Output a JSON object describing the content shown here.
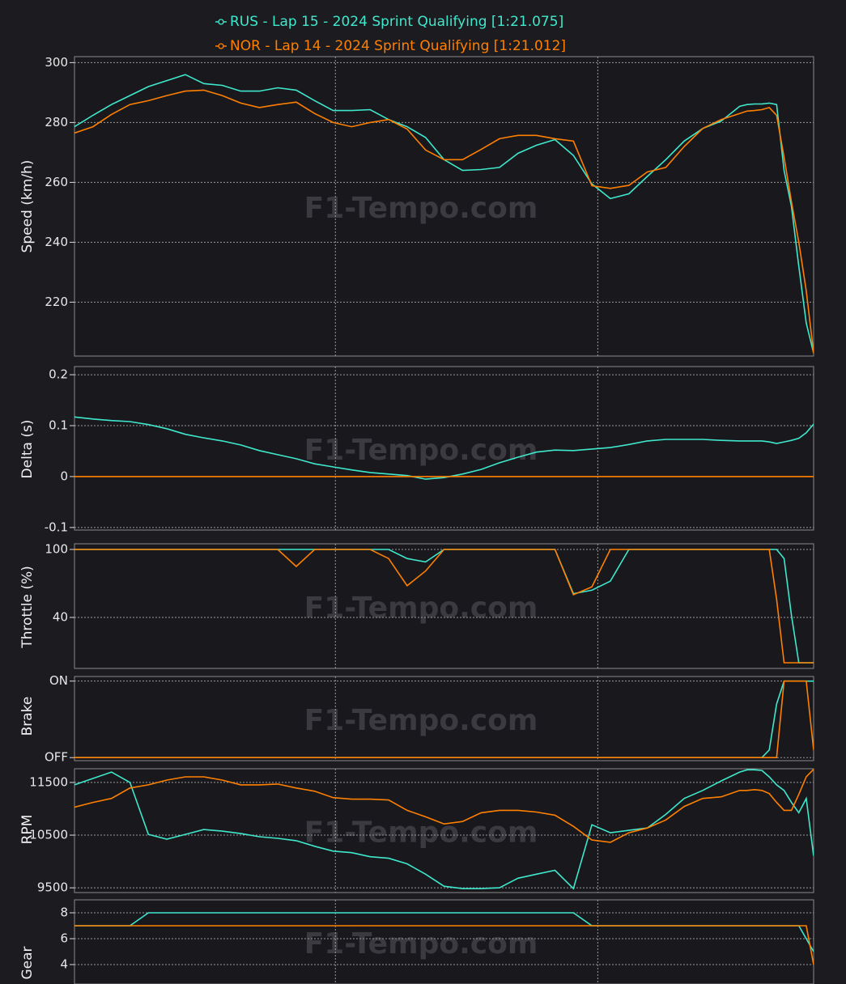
{
  "watermark": "F1-Tempo.com",
  "chart_data": [
    {
      "type": "line",
      "y_label": "Speed (km/h)",
      "x": [
        0,
        2.5,
        5,
        7.5,
        10,
        12.5,
        15,
        17.5,
        20,
        22.5,
        25,
        27.5,
        30,
        32.5,
        35,
        37.5,
        40,
        42.5,
        45,
        47.5,
        50,
        52.5,
        55,
        57.5,
        60,
        62.5,
        65,
        67.5,
        70,
        72.5,
        75,
        77.5,
        80,
        82.5,
        85,
        87.5,
        90,
        91,
        92,
        93,
        94,
        95,
        96,
        97,
        98,
        99,
        100
      ],
      "xlim": [
        0,
        100
      ],
      "xticks": [
        35.3,
        70.8
      ],
      "ylim": [
        202,
        302
      ],
      "yticks": [
        220,
        240,
        260,
        280,
        300
      ],
      "grid": true,
      "series": [
        {
          "name": "RUS - Lap 15 - 2024 Sprint Qualifying [1:21.075]",
          "color": "#3fe8cc",
          "values": [
            278.6,
            282.4,
            286,
            289,
            292,
            294,
            296,
            293,
            292.4,
            290.5,
            290.5,
            291.6,
            290.8,
            287.3,
            284,
            284,
            284.3,
            281,
            278.6,
            275,
            267.6,
            264,
            264.3,
            265,
            269.7,
            272.4,
            274.3,
            269,
            259.5,
            254.6,
            256.2,
            262,
            267.6,
            273.8,
            278,
            280.5,
            285.4,
            286,
            286.2,
            286.2,
            286.5,
            286,
            264,
            252,
            232,
            213,
            203
          ]
        },
        {
          "name": "NOR - Lap 14 - 2024 Sprint Qualifying [1:21.012]",
          "color": "#ff8000",
          "values": [
            276.5,
            278.6,
            282.7,
            286,
            287.3,
            289,
            290.5,
            290.8,
            289,
            286.5,
            285,
            286,
            286.8,
            283,
            280,
            278.6,
            280,
            281,
            277.8,
            270.8,
            267.6,
            267.6,
            271,
            274.6,
            275.7,
            275.7,
            274.6,
            273.8,
            258.9,
            258,
            259,
            263.5,
            265,
            272,
            278,
            281,
            283,
            283.8,
            284,
            284.3,
            285,
            282.4,
            268.4,
            253.5,
            240,
            223.8,
            203
          ]
        }
      ]
    },
    {
      "type": "line",
      "y_label": "Delta (s)",
      "x": [
        0,
        2.5,
        5,
        7.5,
        10,
        12.5,
        15,
        17.5,
        20,
        22.5,
        25,
        27.5,
        30,
        32.5,
        35,
        37.5,
        40,
        42.5,
        45,
        47.5,
        50,
        52.5,
        55,
        57.5,
        60,
        62.5,
        65,
        67.5,
        70,
        72.5,
        75,
        77.5,
        80,
        82.5,
        85,
        87.5,
        90,
        91,
        92,
        93,
        94,
        95,
        96,
        97,
        98,
        99,
        100
      ],
      "xlim": [
        0,
        100
      ],
      "xticks": [
        35.3,
        70.8
      ],
      "ylim": [
        -0.105,
        0.216
      ],
      "yticks": [
        -0.1,
        0,
        0.1,
        0.2
      ],
      "grid": true,
      "series": [
        {
          "color": "#3fe8cc",
          "values": [
            0.117,
            0.113,
            0.11,
            0.108,
            0.102,
            0.094,
            0.083,
            0.076,
            0.07,
            0.062,
            0.051,
            0.043,
            0.035,
            0.025,
            0.019,
            0.013,
            0.008,
            0.005,
            0.002,
            -0.005,
            -0.002,
            0.005,
            0.014,
            0.027,
            0.038,
            0.048,
            0.052,
            0.051,
            0.054,
            0.057,
            0.063,
            0.07,
            0.073,
            0.073,
            0.073,
            0.071,
            0.07,
            0.07,
            0.07,
            0.07,
            0.068,
            0.065,
            0.068,
            0.071,
            0.075,
            0.086,
            0.103
          ]
        },
        {
          "color": "#ff8000",
          "values": [
            0,
            0,
            0,
            0,
            0,
            0,
            0,
            0,
            0,
            0,
            0,
            0,
            0,
            0,
            0,
            0,
            0,
            0,
            0,
            0,
            0,
            0,
            0,
            0,
            0,
            0,
            0,
            0,
            0,
            0,
            0,
            0,
            0,
            0,
            0,
            0,
            0,
            0,
            0,
            0,
            0,
            0,
            0,
            0,
            0,
            0,
            0
          ]
        }
      ]
    },
    {
      "type": "line",
      "y_label": "Throttle (%)",
      "x": [
        0,
        2.5,
        5,
        7.5,
        10,
        12.5,
        15,
        17.5,
        20,
        22.5,
        25,
        27.5,
        30,
        32.5,
        35,
        37.5,
        40,
        42.5,
        45,
        47.5,
        50,
        52.5,
        55,
        57.5,
        60,
        62.5,
        65,
        67.5,
        70,
        72.5,
        75,
        77.5,
        80,
        82.5,
        85,
        87.5,
        90,
        91,
        92,
        93,
        94,
        95,
        96,
        97,
        98,
        99,
        100
      ],
      "xlim": [
        0,
        100
      ],
      "xticks": [
        35.3,
        70.8
      ],
      "ylim": [
        -5,
        105
      ],
      "yticks": [
        40,
        100
      ],
      "grid": true,
      "series": [
        {
          "color": "#3fe8cc",
          "values": [
            100,
            100,
            100,
            100,
            100,
            100,
            100,
            100,
            100,
            100,
            100,
            100,
            100,
            100,
            100,
            100,
            100,
            100,
            92,
            89,
            100,
            100,
            100,
            100,
            100,
            100,
            100,
            61,
            64,
            72,
            100,
            100,
            100,
            100,
            100,
            100,
            100,
            100,
            100,
            100,
            100,
            100,
            92,
            42,
            0,
            0,
            0
          ]
        },
        {
          "color": "#ff8000",
          "values": [
            100,
            100,
            100,
            100,
            100,
            100,
            100,
            100,
            100,
            100,
            100,
            100,
            85,
            100,
            100,
            100,
            100,
            92,
            68,
            81,
            100,
            100,
            100,
            100,
            100,
            100,
            100,
            60,
            67,
            100,
            100,
            100,
            100,
            100,
            100,
            100,
            100,
            100,
            100,
            100,
            100,
            56,
            0,
            0,
            0,
            0,
            0
          ]
        }
      ]
    },
    {
      "type": "line",
      "y_label": "Brake",
      "x": [
        0,
        2.5,
        5,
        7.5,
        10,
        12.5,
        15,
        17.5,
        20,
        22.5,
        25,
        27.5,
        30,
        32.5,
        35,
        37.5,
        40,
        42.5,
        45,
        47.5,
        50,
        52.5,
        55,
        57.5,
        60,
        62.5,
        65,
        67.5,
        70,
        72.5,
        75,
        77.5,
        80,
        82.5,
        85,
        87.5,
        90,
        91,
        92,
        93,
        94,
        95,
        96,
        97,
        98,
        99,
        100
      ],
      "xlim": [
        0,
        100
      ],
      "xticks": [
        35.3,
        70.8
      ],
      "ylim": [
        -0.04,
        1.06
      ],
      "yticks": [
        {
          "value": 0,
          "label": "OFF"
        },
        {
          "value": 1,
          "label": "ON"
        }
      ],
      "grid": true,
      "series": [
        {
          "color": "#3fe8cc",
          "values": [
            0,
            0,
            0,
            0,
            0,
            0,
            0,
            0,
            0,
            0,
            0,
            0,
            0,
            0,
            0,
            0,
            0,
            0,
            0,
            0,
            0,
            0,
            0,
            0,
            0,
            0,
            0,
            0,
            0,
            0,
            0,
            0,
            0,
            0,
            0,
            0,
            0,
            0,
            0,
            0,
            0.1,
            0.7,
            1,
            1,
            1,
            1,
            1
          ]
        },
        {
          "color": "#ff8000",
          "values": [
            0,
            0,
            0,
            0,
            0,
            0,
            0,
            0,
            0,
            0,
            0,
            0,
            0,
            0,
            0,
            0,
            0,
            0,
            0,
            0,
            0,
            0,
            0,
            0,
            0,
            0,
            0,
            0,
            0,
            0,
            0,
            0,
            0,
            0,
            0,
            0,
            0,
            0,
            0,
            0,
            0,
            0,
            1,
            1,
            1,
            1,
            0.1
          ]
        }
      ]
    },
    {
      "type": "line",
      "y_label": "RPM",
      "x": [
        0,
        2.5,
        5,
        7.5,
        10,
        12.5,
        15,
        17.5,
        20,
        22.5,
        25,
        27.5,
        30,
        32.5,
        35,
        37.5,
        40,
        42.5,
        45,
        47.5,
        50,
        52.5,
        55,
        57.5,
        60,
        62.5,
        65,
        67.5,
        70,
        72.5,
        75,
        77.5,
        80,
        82.5,
        85,
        87.5,
        90,
        91,
        92,
        93,
        94,
        95,
        96,
        97,
        98,
        99,
        100
      ],
      "xlim": [
        0,
        100
      ],
      "xticks": [
        35.3,
        70.8
      ],
      "ylim": [
        9410,
        11760
      ],
      "yticks": [
        9500,
        10500,
        11500
      ],
      "grid": true,
      "series": [
        {
          "color": "#3fe8cc",
          "values": [
            11455,
            11576,
            11697,
            11500,
            10515,
            10424,
            10515,
            10606,
            10576,
            10530,
            10470,
            10439,
            10394,
            10288,
            10197,
            10167,
            10091,
            10061,
            9955,
            9758,
            9530,
            9485,
            9485,
            9500,
            9682,
            9758,
            9833,
            9485,
            10697,
            10545,
            10591,
            10636,
            10894,
            11197,
            11348,
            11530,
            11697,
            11740,
            11740,
            11727,
            11606,
            11455,
            11348,
            11121,
            10924,
            11197,
            10106
          ]
        },
        {
          "color": "#ff8000",
          "values": [
            11030,
            11121,
            11197,
            11394,
            11455,
            11545,
            11606,
            11606,
            11545,
            11455,
            11455,
            11470,
            11394,
            11333,
            11212,
            11182,
            11182,
            11167,
            10970,
            10848,
            10712,
            10758,
            10924,
            10970,
            10970,
            10939,
            10879,
            10667,
            10409,
            10364,
            10545,
            10636,
            10788,
            11045,
            11197,
            11227,
            11348,
            11348,
            11364,
            11348,
            11288,
            11121,
            10970,
            10970,
            11273,
            11606,
            11750
          ]
        }
      ]
    },
    {
      "type": "line",
      "y_label": "Gear",
      "x": [
        0,
        2.5,
        5,
        7.5,
        10,
        12.5,
        15,
        17.5,
        20,
        22.5,
        25,
        27.5,
        30,
        32.5,
        35,
        37.5,
        40,
        42.5,
        45,
        47.5,
        50,
        52.5,
        55,
        57.5,
        60,
        62.5,
        65,
        67.5,
        70,
        72.5,
        75,
        77.5,
        80,
        82.5,
        85,
        87.5,
        90,
        91,
        92,
        93,
        94,
        95,
        96,
        97,
        98,
        99,
        100
      ],
      "xlim": [
        0,
        100
      ],
      "xticks": [
        35.3,
        70.8
      ],
      "ylim": [
        2.5,
        9
      ],
      "yticks": [
        4,
        6,
        8
      ],
      "grid": true,
      "series": [
        {
          "color": "#3fe8cc",
          "values": [
            7,
            7,
            7,
            7,
            8,
            8,
            8,
            8,
            8,
            8,
            8,
            8,
            8,
            8,
            8,
            8,
            8,
            8,
            8,
            8,
            8,
            8,
            8,
            8,
            8,
            8,
            8,
            8,
            7,
            7,
            7,
            7,
            7,
            7,
            7,
            7,
            7,
            7,
            7,
            7,
            7,
            7,
            7,
            7,
            7,
            6,
            5
          ]
        },
        {
          "color": "#ff8000",
          "values": [
            7,
            7,
            7,
            7,
            7,
            7,
            7,
            7,
            7,
            7,
            7,
            7,
            7,
            7,
            7,
            7,
            7,
            7,
            7,
            7,
            7,
            7,
            7,
            7,
            7,
            7,
            7,
            7,
            7,
            7,
            7,
            7,
            7,
            7,
            7,
            7,
            7,
            7,
            7,
            7,
            7,
            7,
            7,
            7,
            7,
            7,
            4
          ]
        }
      ]
    }
  ]
}
